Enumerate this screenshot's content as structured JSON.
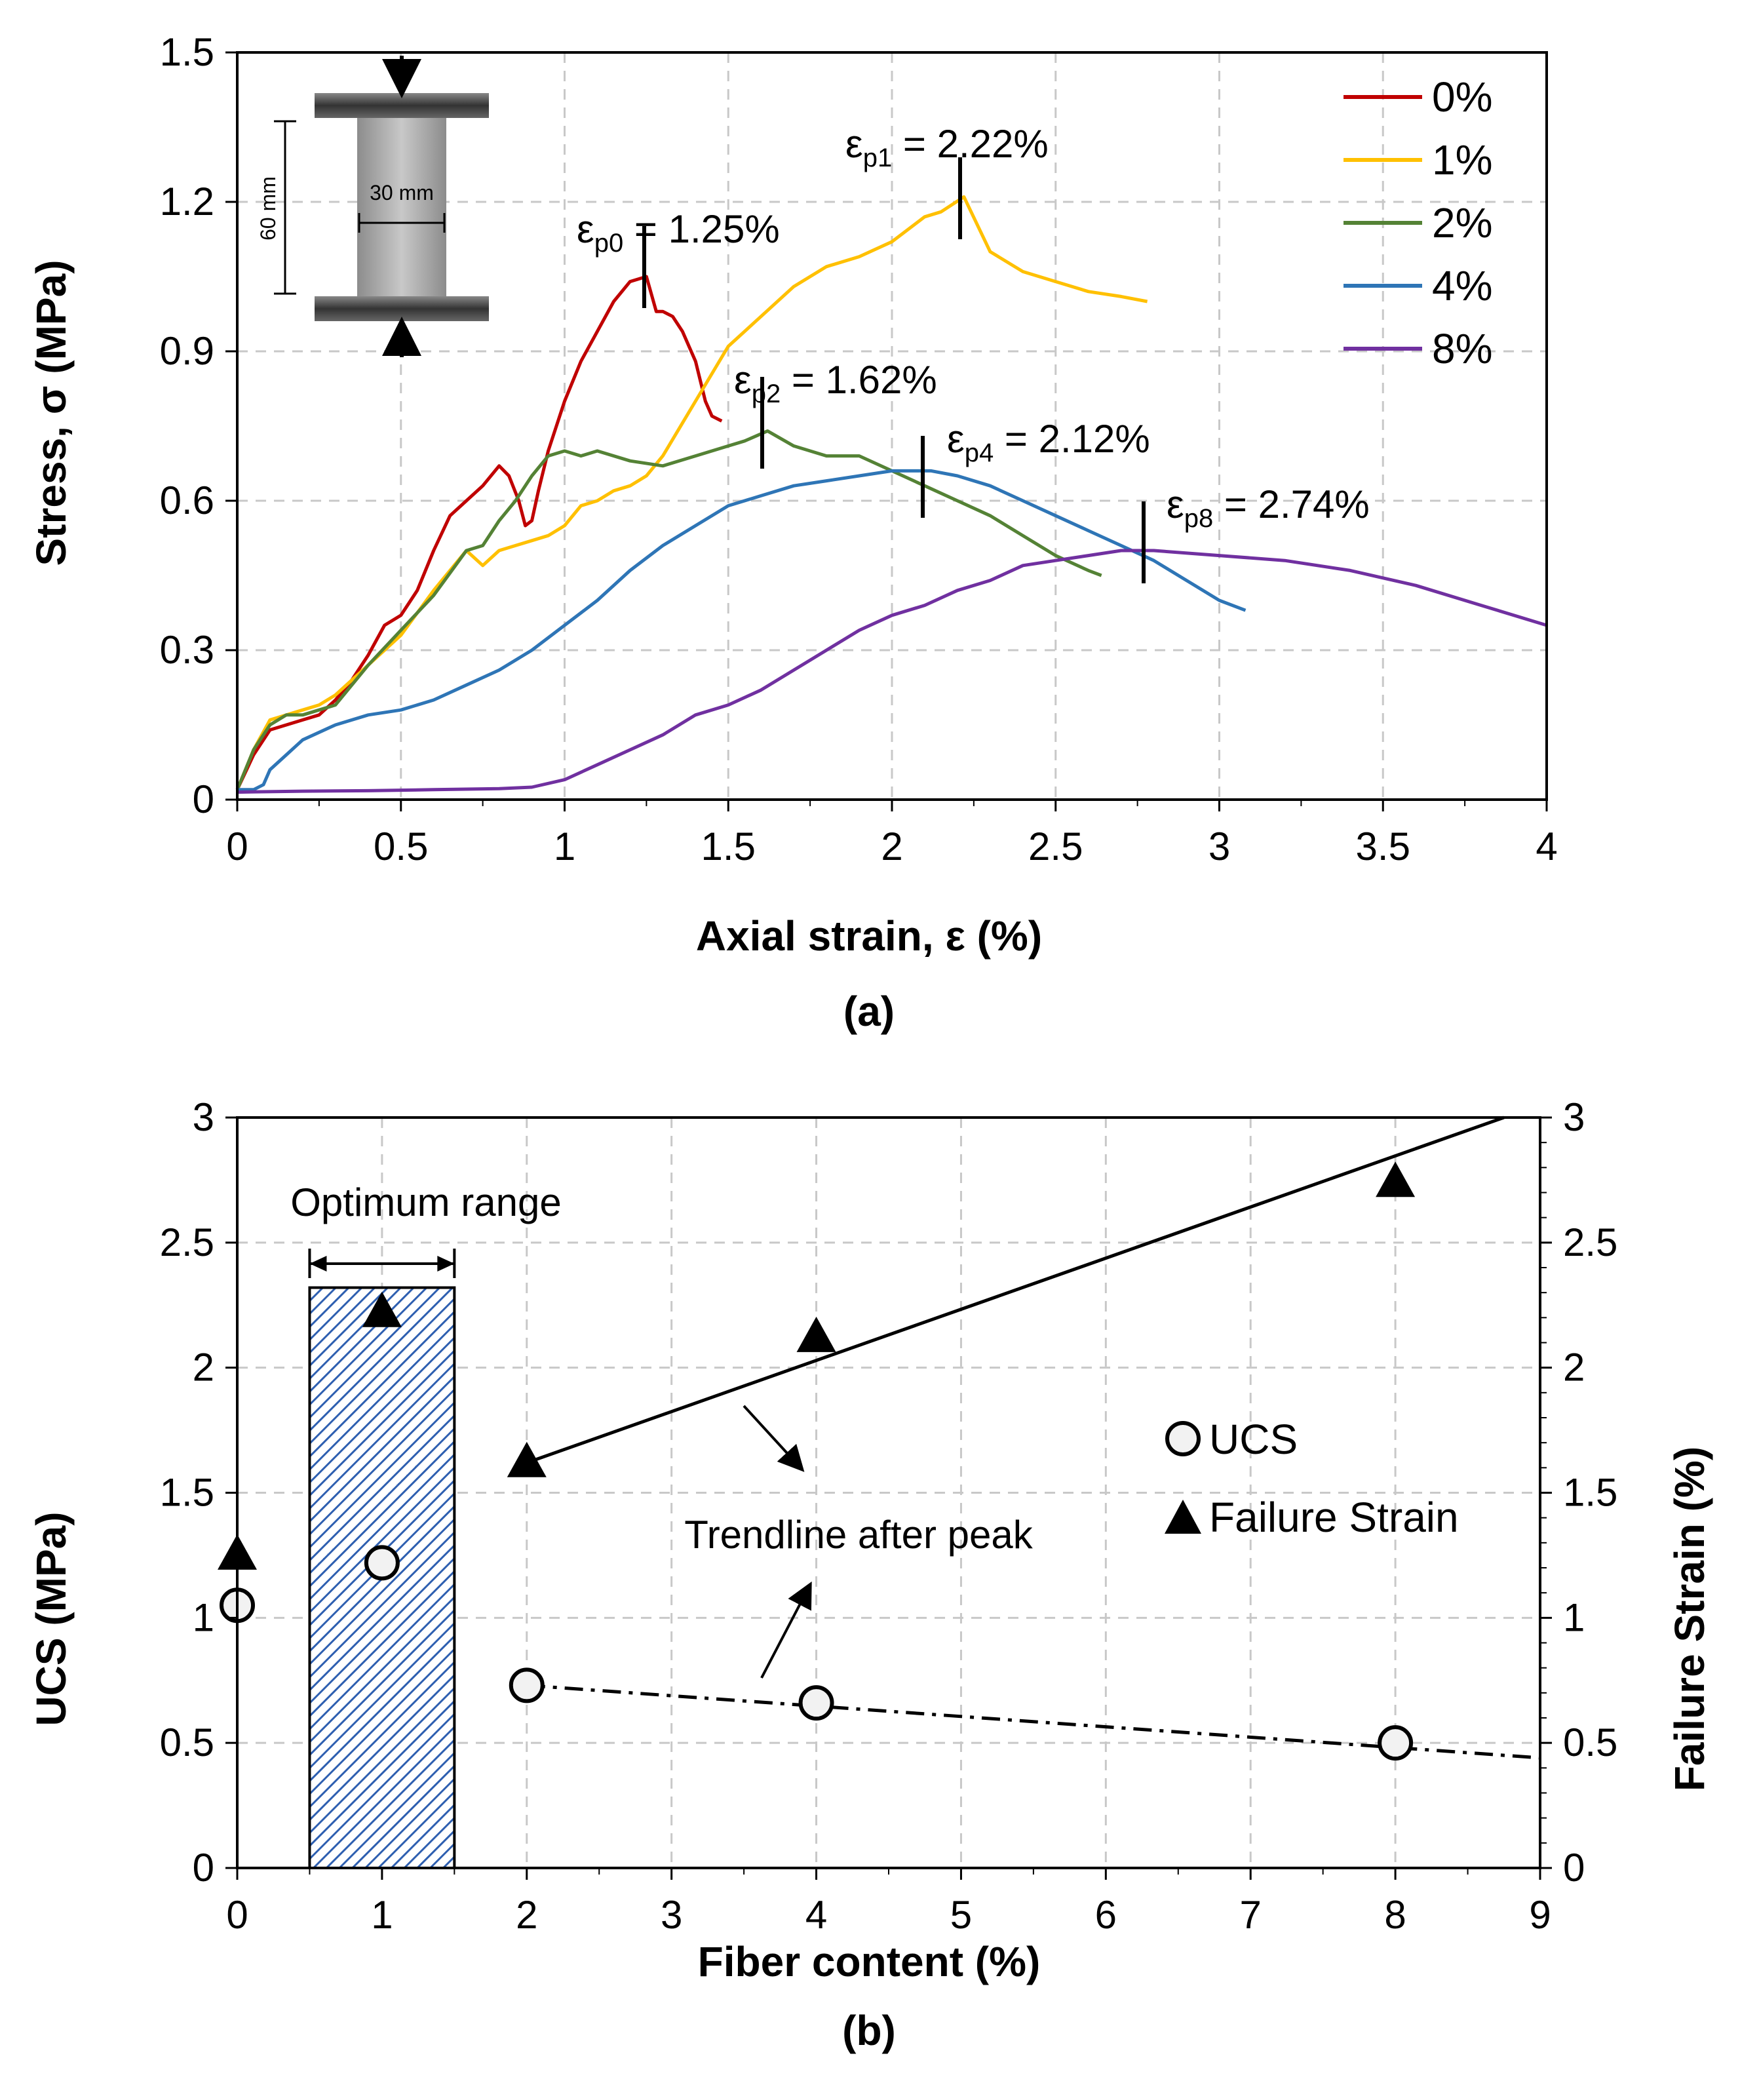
{
  "figure": {
    "panel_a_label": "(a)",
    "panel_b_label": "(b)"
  },
  "chart_data": [
    {
      "type": "line",
      "panel": "a",
      "xlabel": "Axial strain, ε (%)",
      "ylabel": "Stress, σ (MPa)",
      "xlim": [
        0,
        4
      ],
      "ylim": [
        0,
        1.5
      ],
      "xticks": [
        0,
        0.5,
        1,
        1.5,
        2,
        2.5,
        3,
        3.5,
        4
      ],
      "xtick_labels": [
        "0",
        "0.5",
        "1",
        "1.5",
        "2",
        "2.5",
        "3",
        "3.5",
        "4"
      ],
      "yticks": [
        0,
        0.3,
        0.6,
        0.9,
        1.2,
        1.5
      ],
      "ytick_labels": [
        "0",
        "0.3",
        "0.6",
        "0.9",
        "1.2",
        "1.5"
      ],
      "grid": true,
      "legend_position": "top-right",
      "series": [
        {
          "name": "0%",
          "color": "#c00000",
          "x": [
            0,
            0.05,
            0.1,
            0.15,
            0.2,
            0.25,
            0.3,
            0.35,
            0.4,
            0.45,
            0.5,
            0.55,
            0.6,
            0.65,
            0.7,
            0.75,
            0.8,
            0.83,
            0.86,
            0.88,
            0.9,
            0.92,
            0.95,
            1.0,
            1.05,
            1.1,
            1.15,
            1.2,
            1.25,
            1.28,
            1.3,
            1.33,
            1.36,
            1.4,
            1.43,
            1.45,
            1.48
          ],
          "y": [
            0.02,
            0.09,
            0.14,
            0.15,
            0.16,
            0.17,
            0.2,
            0.24,
            0.29,
            0.35,
            0.37,
            0.42,
            0.5,
            0.57,
            0.6,
            0.63,
            0.67,
            0.65,
            0.6,
            0.55,
            0.56,
            0.62,
            0.7,
            0.8,
            0.88,
            0.94,
            1.0,
            1.04,
            1.05,
            0.98,
            0.98,
            0.97,
            0.94,
            0.88,
            0.8,
            0.77,
            0.76
          ]
        },
        {
          "name": "1%",
          "color": "#ffc000",
          "x": [
            0,
            0.05,
            0.1,
            0.15,
            0.2,
            0.25,
            0.3,
            0.35,
            0.4,
            0.5,
            0.6,
            0.7,
            0.75,
            0.8,
            0.85,
            0.9,
            0.95,
            1.0,
            1.05,
            1.1,
            1.15,
            1.2,
            1.25,
            1.3,
            1.4,
            1.5,
            1.6,
            1.7,
            1.8,
            1.9,
            2.0,
            2.1,
            2.15,
            2.22,
            2.3,
            2.4,
            2.5,
            2.6,
            2.7,
            2.78
          ],
          "y": [
            0.02,
            0.1,
            0.16,
            0.17,
            0.18,
            0.19,
            0.21,
            0.24,
            0.27,
            0.33,
            0.42,
            0.5,
            0.47,
            0.5,
            0.51,
            0.52,
            0.53,
            0.55,
            0.59,
            0.6,
            0.62,
            0.63,
            0.65,
            0.69,
            0.8,
            0.91,
            0.97,
            1.03,
            1.07,
            1.09,
            1.12,
            1.17,
            1.18,
            1.21,
            1.1,
            1.06,
            1.04,
            1.02,
            1.01,
            1.0
          ]
        },
        {
          "name": "2%",
          "color": "#548235",
          "x": [
            0,
            0.05,
            0.1,
            0.15,
            0.2,
            0.25,
            0.3,
            0.35,
            0.4,
            0.5,
            0.6,
            0.7,
            0.75,
            0.8,
            0.85,
            0.9,
            0.95,
            1.0,
            1.05,
            1.1,
            1.2,
            1.3,
            1.4,
            1.5,
            1.55,
            1.62,
            1.7,
            1.8,
            1.9,
            2.0,
            2.1,
            2.2,
            2.3,
            2.4,
            2.5,
            2.6,
            2.64
          ],
          "y": [
            0.02,
            0.1,
            0.15,
            0.17,
            0.17,
            0.18,
            0.19,
            0.23,
            0.27,
            0.34,
            0.41,
            0.5,
            0.51,
            0.56,
            0.6,
            0.65,
            0.69,
            0.7,
            0.69,
            0.7,
            0.68,
            0.67,
            0.69,
            0.71,
            0.72,
            0.74,
            0.71,
            0.69,
            0.69,
            0.66,
            0.63,
            0.6,
            0.57,
            0.53,
            0.49,
            0.46,
            0.45
          ]
        },
        {
          "name": "4%",
          "color": "#2e75b6",
          "x": [
            0,
            0.05,
            0.08,
            0.1,
            0.15,
            0.2,
            0.3,
            0.4,
            0.5,
            0.6,
            0.7,
            0.8,
            0.9,
            1.0,
            1.1,
            1.2,
            1.3,
            1.4,
            1.5,
            1.6,
            1.7,
            1.8,
            1.9,
            2.0,
            2.12,
            2.2,
            2.3,
            2.4,
            2.5,
            2.6,
            2.7,
            2.8,
            2.9,
            3.0,
            3.08
          ],
          "y": [
            0.02,
            0.02,
            0.03,
            0.06,
            0.09,
            0.12,
            0.15,
            0.17,
            0.18,
            0.2,
            0.23,
            0.26,
            0.3,
            0.35,
            0.4,
            0.46,
            0.51,
            0.55,
            0.59,
            0.61,
            0.63,
            0.64,
            0.65,
            0.66,
            0.66,
            0.65,
            0.63,
            0.6,
            0.57,
            0.54,
            0.51,
            0.48,
            0.44,
            0.4,
            0.38
          ]
        },
        {
          "name": "8%",
          "color": "#7030a0",
          "x": [
            0,
            0.2,
            0.4,
            0.6,
            0.8,
            0.9,
            1.0,
            1.1,
            1.2,
            1.3,
            1.4,
            1.5,
            1.6,
            1.7,
            1.8,
            1.9,
            2.0,
            2.1,
            2.2,
            2.3,
            2.4,
            2.5,
            2.6,
            2.7,
            2.74,
            2.8,
            3.0,
            3.2,
            3.4,
            3.6,
            3.8,
            4.0
          ],
          "y": [
            0.015,
            0.017,
            0.018,
            0.02,
            0.022,
            0.025,
            0.04,
            0.07,
            0.1,
            0.13,
            0.17,
            0.19,
            0.22,
            0.26,
            0.3,
            0.34,
            0.37,
            0.39,
            0.42,
            0.44,
            0.47,
            0.48,
            0.49,
            0.5,
            0.5,
            0.5,
            0.49,
            0.48,
            0.46,
            0.43,
            0.39,
            0.35
          ]
        }
      ],
      "peak_annotations": [
        {
          "label": "ε",
          "sub": "p0",
          "suffix": " = 1.25%",
          "x": 1.24
        },
        {
          "label": "ε",
          "sub": "p1",
          "suffix": " = 2.22%",
          "x": 2.22
        },
        {
          "label": "ε",
          "sub": "p2",
          "suffix": " = 1.62%",
          "x": 1.61
        },
        {
          "label": "ε",
          "sub": "p4",
          "suffix": " = 2.12%",
          "x": 2.09
        },
        {
          "label": "ε",
          "sub": "p8",
          "suffix": " = 2.74%",
          "x": 2.76
        }
      ],
      "inset": {
        "height_label": "60 mm",
        "width_label": "30 mm"
      }
    },
    {
      "type": "scatter",
      "panel": "b",
      "xlabel": "Fiber content (%)",
      "ylabel": "UCS (MPa)",
      "y2label": "Failure Strain (%)",
      "xlim": [
        0,
        9
      ],
      "ylim": [
        0,
        3
      ],
      "y2lim": [
        0,
        3
      ],
      "xticks": [
        0,
        1,
        2,
        3,
        4,
        5,
        6,
        7,
        8,
        9
      ],
      "xtick_labels": [
        "0",
        "1",
        "2",
        "3",
        "4",
        "5",
        "6",
        "7",
        "8",
        "9"
      ],
      "yticks": [
        0,
        0.5,
        1,
        1.5,
        2,
        2.5,
        3
      ],
      "ytick_labels": [
        "0",
        "0.5",
        "1",
        "1.5",
        "2",
        "2.5",
        "3"
      ],
      "grid": true,
      "legend_position": "right",
      "series": [
        {
          "name": "UCS",
          "marker": "circle",
          "x": [
            0,
            1,
            2,
            4,
            8
          ],
          "y": [
            1.05,
            1.22,
            0.73,
            0.66,
            0.5
          ]
        },
        {
          "name": "Failure Strain",
          "marker": "triangle",
          "x": [
            0,
            1,
            2,
            4,
            8
          ],
          "y": [
            1.25,
            2.22,
            1.62,
            2.12,
            2.74
          ]
        }
      ],
      "trendlines": [
        {
          "series": "Failure Strain",
          "style": "solid",
          "x": [
            2,
            8.75
          ],
          "y": [
            1.62,
            3.0
          ]
        },
        {
          "series": "UCS",
          "style": "dash-dot",
          "x": [
            2,
            9
          ],
          "y": [
            0.73,
            0.44
          ]
        }
      ],
      "optimum_range": {
        "label": "Optimum range",
        "x": [
          0.5,
          1.5
        ],
        "y_top": 2.32
      },
      "trend_annotation": "Trendline after peak"
    }
  ]
}
